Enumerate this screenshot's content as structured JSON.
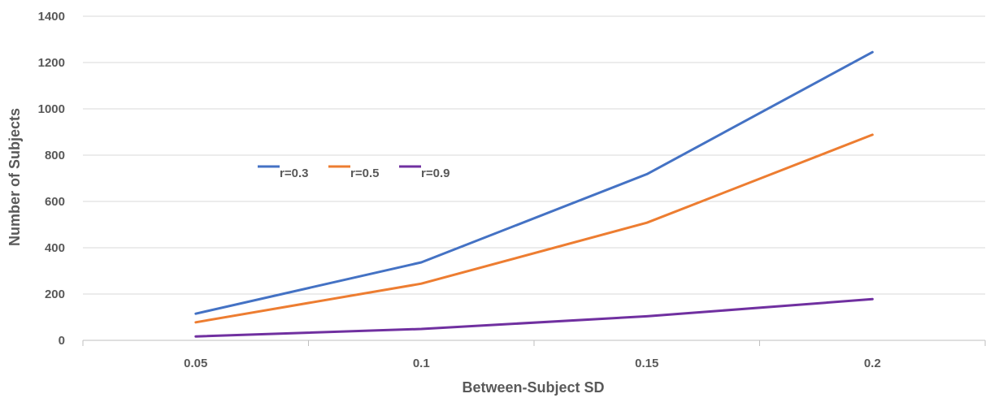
{
  "chart_data": {
    "type": "line",
    "title": "",
    "xlabel": "Between-Subject SD",
    "ylabel": "Number of Subjects",
    "categories": [
      "0.05",
      "0.1",
      "0.15",
      "0.2"
    ],
    "ylim": [
      0,
      1400
    ],
    "yticks": [
      0,
      200,
      400,
      600,
      800,
      1000,
      1200,
      1400
    ],
    "grid": "horizontal",
    "legend_position": "inside-left",
    "series": [
      {
        "name": "r=0.3",
        "color": "#4472C4",
        "values": [
          115,
          337,
          718,
          1245
        ]
      },
      {
        "name": "r=0.5",
        "color": "#ED7D31",
        "values": [
          78,
          245,
          508,
          888
        ]
      },
      {
        "name": "r=0.9",
        "color": "#7030A0",
        "values": [
          17,
          49,
          104,
          178
        ]
      }
    ]
  }
}
